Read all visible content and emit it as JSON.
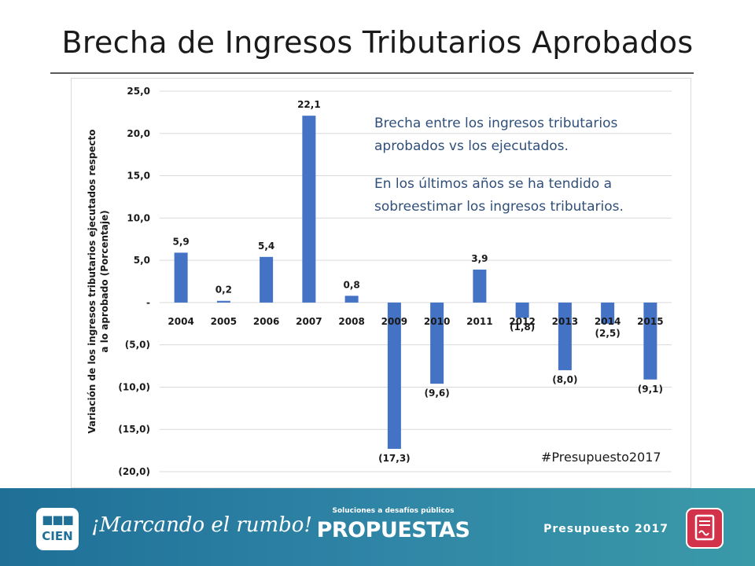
{
  "page": {
    "title": "Brecha de Ingresos Tributarios Aprobados",
    "hashtag": "#Presupuesto2017"
  },
  "notes": {
    "line1": "Brecha entre los ingresos tributarios aprobados vs los ejecutados.",
    "line2": "En los últimos años se ha tendido a sobreestimar los ingresos tributarios."
  },
  "footer": {
    "logo_line1": "■■■",
    "logo_line2": "CIEN",
    "tagline": "¡Marcando el rumbo!",
    "propuestas_sub": "Soluciones a desafíos públicos",
    "propuestas_main": "PROPUESTAS",
    "presupuesto_label": "Presupuesto 2017",
    "doc_icon": "document-icon"
  },
  "colors": {
    "bar": "#4472c4",
    "title": "#1a1a1a",
    "note": "#2f4f7a",
    "footer_start": "#1f6f97",
    "footer_end": "#3a9aa8",
    "doc_icon": "#d2334a"
  },
  "chart_data": {
    "type": "bar",
    "title": "",
    "xlabel": "",
    "ylabel": "Variación de los ingresos tributarios ejecutados respecto a lo aprobado (Porcentaje)",
    "ylabel_lines": [
      "Variación de los ingresos tributarios ejecutados respecto",
      "a lo aprobado (Porcentaje)"
    ],
    "categories": [
      "2004",
      "2005",
      "2006",
      "2007",
      "2008",
      "2009",
      "2010",
      "2011",
      "2012",
      "2013",
      "2014",
      "2015"
    ],
    "values": [
      5.9,
      0.2,
      5.4,
      22.1,
      0.8,
      -17.3,
      -9.6,
      3.9,
      -1.8,
      -8.0,
      -2.5,
      -9.1
    ],
    "data_labels": [
      "5,9",
      "0,2",
      "5,4",
      "22,1",
      "0,8",
      "(17,3)",
      "(9,6)",
      "3,9",
      "(1,8)",
      "(8,0)",
      "(2,5)",
      "(9,1)"
    ],
    "ylim": [
      -20,
      25
    ],
    "yticks": [
      25,
      20,
      15,
      10,
      5,
      0,
      -5,
      -10,
      -15,
      -20
    ],
    "ytick_labels": [
      "25,0",
      "20,0",
      "15,0",
      "10,0",
      "5,0",
      "-",
      "(5,0)",
      "(10,0)",
      "(15,0)",
      "(20,0)"
    ],
    "grid": true,
    "legend": "none"
  }
}
